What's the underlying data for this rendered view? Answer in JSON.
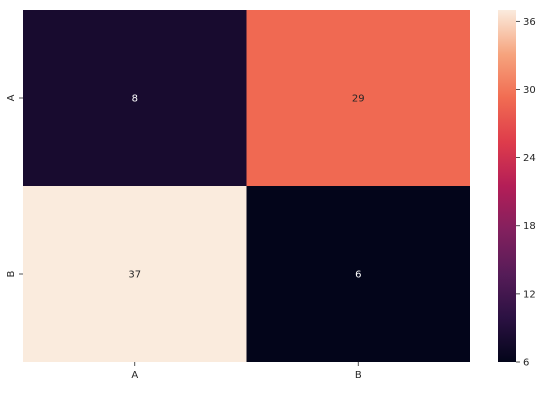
{
  "chart_data": {
    "type": "heatmap",
    "title": "",
    "xlabel": "",
    "ylabel": "",
    "x_categories": [
      "A",
      "B"
    ],
    "y_categories": [
      "A",
      "B"
    ],
    "values": [
      [
        8,
        29
      ],
      [
        37,
        6
      ]
    ],
    "colorbar": {
      "min": 6,
      "max": 37,
      "ticks": [
        6,
        12,
        18,
        24,
        30,
        36
      ],
      "colormap": "rocket"
    },
    "annotations": true,
    "grid": false,
    "legend": "colorbar-right"
  }
}
